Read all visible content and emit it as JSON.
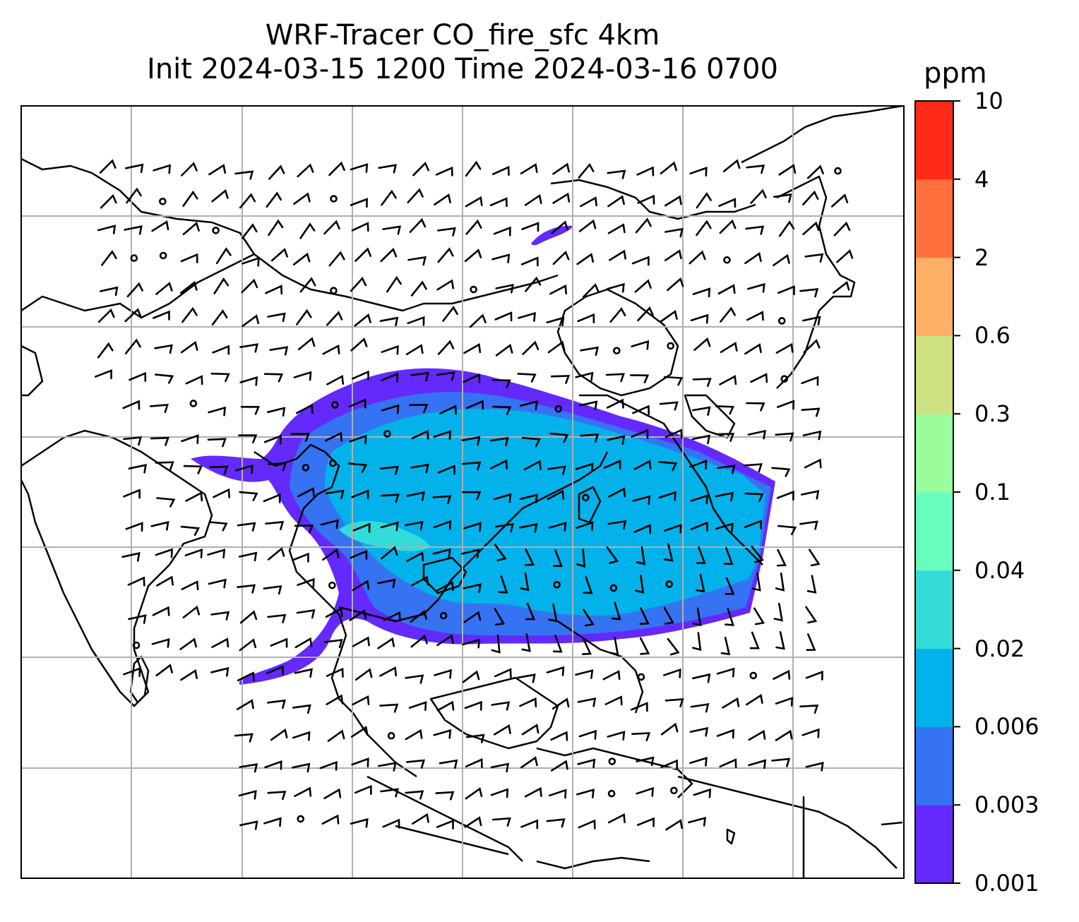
{
  "title": {
    "line1": "WRF-Tracer CO_fire_sfc 4km",
    "line2": "Init 2024-03-15 1200 Time 2024-03-16 0700"
  },
  "colorbar": {
    "unit": "ppm",
    "levels": [
      "0.001",
      "0.003",
      "0.006",
      "0.02",
      "0.04",
      "0.1",
      "0.3",
      "0.6",
      "2",
      "4",
      "10"
    ],
    "colors": [
      "#6429fb",
      "#3573f3",
      "#03b2ea",
      "#33dcd8",
      "#68fcbf",
      "#9bfc9c",
      "#cde183",
      "#ffb064",
      "#ff703c",
      "#ff2a17"
    ]
  },
  "map": {
    "gridline_color": "#b0b0b0",
    "coastline_color": "#000000",
    "wind_barb_color": "#000000"
  }
}
